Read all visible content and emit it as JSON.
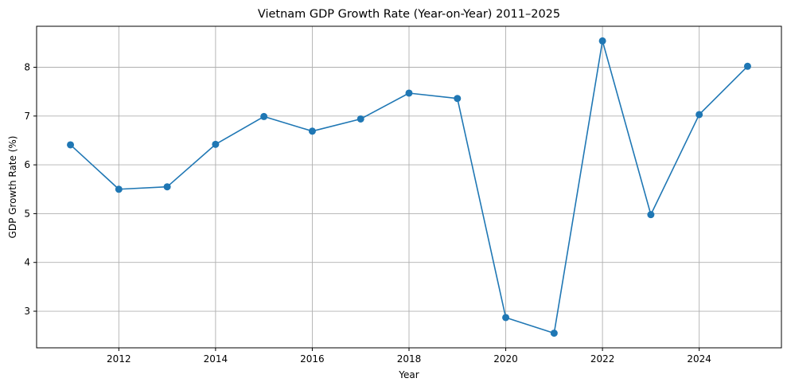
{
  "chart_data": {
    "type": "line",
    "title": "Vietnam GDP Growth Rate (Year-on-Year) 2011–2025",
    "xlabel": "Year",
    "ylabel": "GDP Growth Rate (%)",
    "x": [
      2011,
      2012,
      2013,
      2014,
      2015,
      2016,
      2017,
      2018,
      2019,
      2020,
      2021,
      2022,
      2023,
      2024,
      2025
    ],
    "series": [
      {
        "values": [
          6.41,
          5.5,
          5.55,
          6.42,
          6.99,
          6.69,
          6.94,
          7.47,
          7.36,
          2.87,
          2.55,
          8.54,
          4.98,
          7.03,
          8.02
        ],
        "color": "#1f77b4",
        "marker": "circle"
      }
    ],
    "xlim": [
      2010.3,
      2025.7
    ],
    "ylim": [
      2.25,
      8.84
    ],
    "xticks": [
      2012,
      2014,
      2016,
      2018,
      2020,
      2022,
      2024
    ],
    "yticks": [
      3,
      4,
      5,
      6,
      7,
      8
    ],
    "grid": true,
    "grid_color": "#b0b0b0",
    "line_color": "#1f77b4"
  }
}
